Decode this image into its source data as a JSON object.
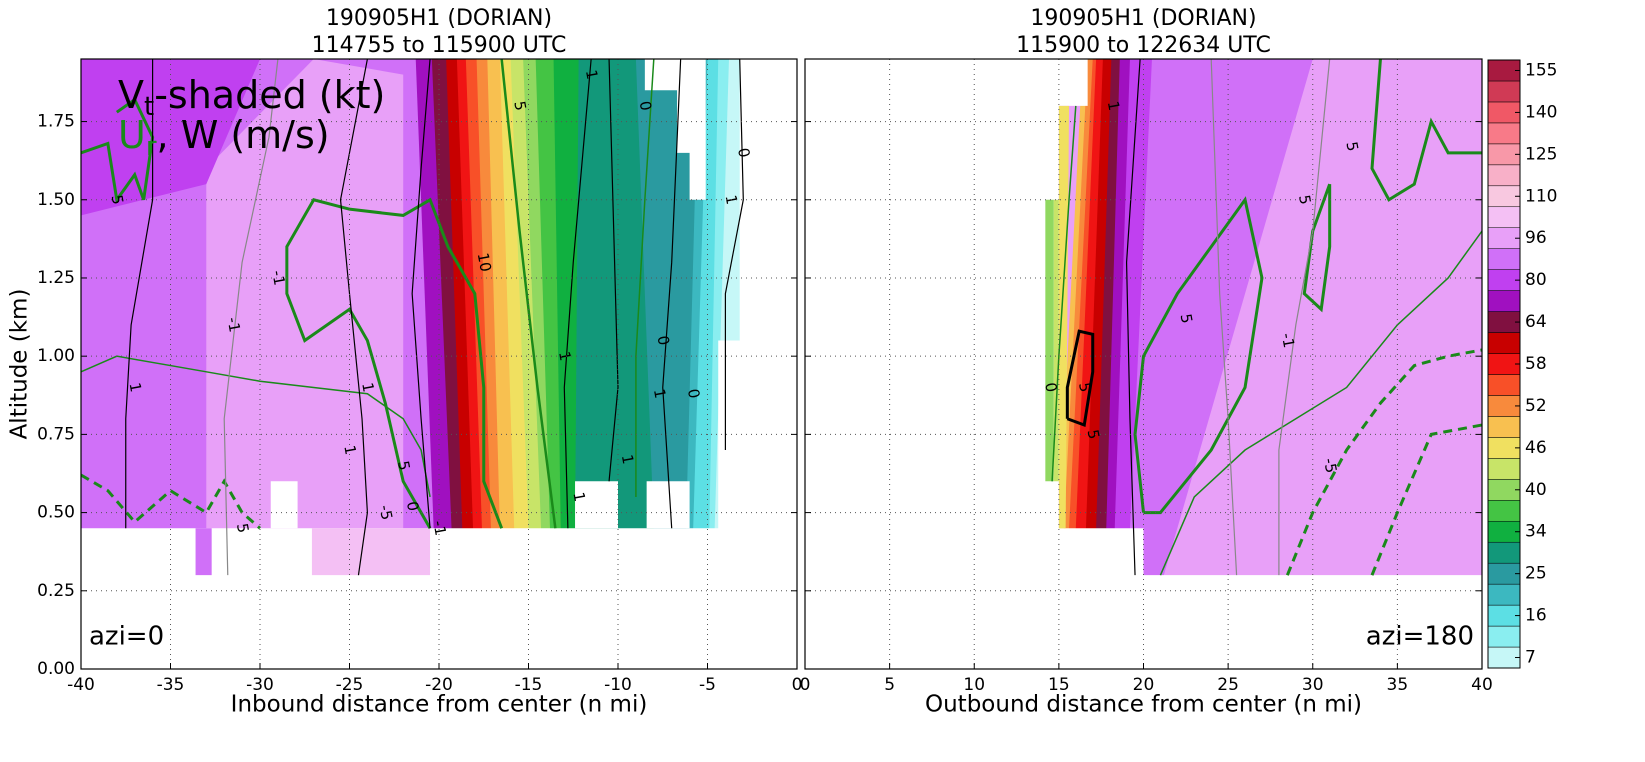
{
  "chart_data": [
    {
      "type": "contour",
      "title": [
        "190905H1 (DORIAN)",
        "114755 to 115900 UTC"
      ],
      "x_label": "Inbound distance from center (n mi)",
      "y_label": "Altitude (km)",
      "annotation": "azi=0",
      "xlim": [
        -40,
        0
      ],
      "xticks": [
        -40,
        -35,
        -30,
        -25,
        -20,
        -15,
        -10,
        -5,
        0
      ],
      "ylim": [
        0,
        1.95
      ],
      "yticks": [
        {
          "value": 0,
          "label": "0.00"
        },
        {
          "value": 0.25,
          "label": "0.25"
        },
        {
          "value": 0.5,
          "label": "0.50"
        },
        {
          "value": 0.75,
          "label": "0.75"
        },
        {
          "value": 1,
          "label": "1.00"
        },
        {
          "value": 1.25,
          "label": "1.25"
        },
        {
          "value": 1.5,
          "label": "1.50"
        },
        {
          "value": 1.75,
          "label": "1.75"
        }
      ],
      "grid": true,
      "contour_labels": [
        "1",
        "-1",
        "-1",
        "1",
        "1",
        "5",
        "5",
        "-5",
        "0",
        "5",
        "-1",
        "5",
        "10",
        "1",
        "1",
        "1",
        "0",
        "0",
        "1",
        "1",
        "0",
        "1",
        "0"
      ]
    },
    {
      "type": "contour",
      "title": [
        "190905H1 (DORIAN)",
        "115900 to 122634 UTC"
      ],
      "x_label": "Outbound distance from center (n mi)",
      "annotation": "azi=180",
      "xlim": [
        0,
        40
      ],
      "xticks": [
        0,
        5,
        10,
        15,
        20,
        25,
        30,
        35,
        40
      ],
      "ylim": [
        0,
        1.95
      ],
      "yticks": [
        0,
        0.25,
        0.5,
        0.75,
        1,
        1.25,
        1.5,
        1.75
      ],
      "grid": true,
      "contour_labels": [
        "1",
        "5",
        "5",
        "5",
        "-1",
        "0",
        "5",
        "5",
        "-5"
      ]
    }
  ],
  "key": {
    "shaded": "V",
    "shaded_sub": "t",
    "shaded_rest": "-shaded (kt)",
    "lines": "U",
    "lines_sub": "r",
    "lines_rest": ", W (m/s)",
    "lines_color": "#1a8a1a"
  },
  "colorbar": {
    "ticks": [
      7,
      16,
      25,
      34,
      40,
      46,
      52,
      58,
      64,
      80,
      96,
      110,
      125,
      140,
      155
    ],
    "colors": [
      "#c6f7f7",
      "#8aeef0",
      "#5cdfe4",
      "#3cb8c0",
      "#2a9aa0",
      "#12987a",
      "#10b040",
      "#44c444",
      "#90d860",
      "#c8e468",
      "#f0e060",
      "#f8c050",
      "#f88a3c",
      "#f85028",
      "#f01414",
      "#c80000",
      "#801040",
      "#a010c0",
      "#c040f0",
      "#d070f8",
      "#e8a0f8",
      "#f4c0f4",
      "#f8c8e0",
      "#f8b0c8",
      "#f898a8",
      "#f87a88",
      "#f05866",
      "#d03a55",
      "#a81a40"
    ]
  }
}
